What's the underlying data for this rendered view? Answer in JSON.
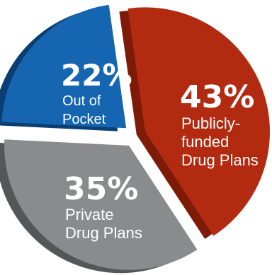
{
  "chart_data": {
    "type": "pie",
    "slices": [
      {
        "label_lines": [
          "Publicly-",
          "funded",
          "Drug Plans"
        ],
        "value": 43,
        "value_label": "43%",
        "color": "#B22A10",
        "side_color": "#7E1A08"
      },
      {
        "label_lines": [
          "Private",
          "Drug Plans"
        ],
        "value": 35,
        "value_label": "35%",
        "color": "#8A8B8D",
        "side_color": "#555658"
      },
      {
        "label_lines": [
          "Out of",
          "Pocket"
        ],
        "value": 22,
        "value_label": "22%",
        "color": "#1565B0",
        "side_color": "#0B3E72"
      }
    ]
  }
}
